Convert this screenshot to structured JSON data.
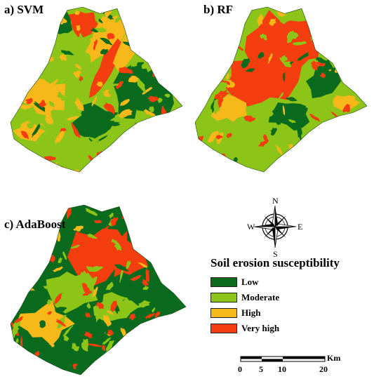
{
  "panels": [
    {
      "id": "a",
      "label": "a) SVM"
    },
    {
      "id": "b",
      "label": "b) RF"
    },
    {
      "id": "c",
      "label": "c) AdaBoost"
    }
  ],
  "compass": {
    "north": "N",
    "south": "S",
    "east": "E",
    "west": "W"
  },
  "legend": {
    "title": "Soil erosion susceptibility",
    "classes": [
      {
        "label": "Low",
        "color": "#0a6a1e"
      },
      {
        "label": "Moderate",
        "color": "#8cc418"
      },
      {
        "label": "High",
        "color": "#f7b81a"
      },
      {
        "label": "Very high",
        "color": "#f53e10"
      }
    ]
  },
  "scale_bar": {
    "ticks": [
      "0",
      "5",
      "10",
      "20"
    ],
    "unit": "Km"
  }
}
